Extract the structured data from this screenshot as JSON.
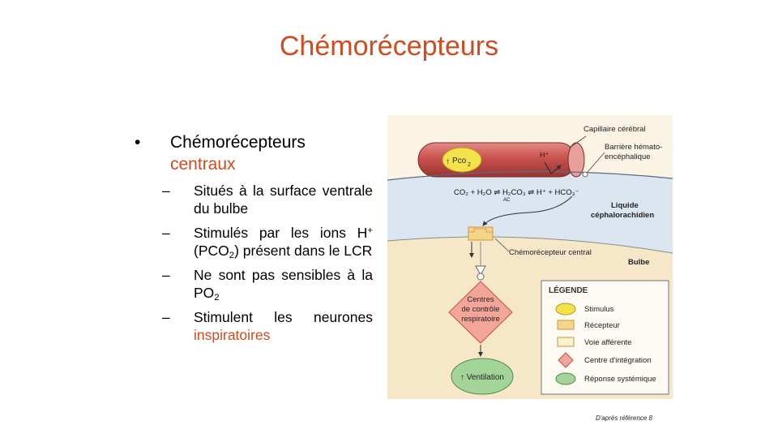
{
  "slide": {
    "title": "Chémorécepteurs",
    "credit": "D'après référence 8"
  },
  "bullets": {
    "main_line1": "Chémorécepteurs",
    "main_line2": "centraux",
    "sub1": "Situés à la surface ventrale du bulbe",
    "sub2_a": "Stimulés par les ions H",
    "sub2_sup": "+",
    "sub2_b": " (PCO",
    "sub2_sub": "2",
    "sub2_c": ") présent dans le LCR",
    "sub3_a": "Ne sont pas sensibles à la PO",
    "sub3_sub": "2",
    "sub4_a": "Stimulent les neurones ",
    "sub4_b": "inspiratoires"
  },
  "figure": {
    "label_capillary": "Capillaire cérébral",
    "label_barrier_1": "Barrière hémato-",
    "label_barrier_2": "encéphalique",
    "pco2": "Pco",
    "pco2_sub": "2",
    "h_plus": "H⁺",
    "equation": "CO₂ + H₂O ⇌ H₂CO₃ ⇌ H⁺ + HCO₃⁻",
    "ac": "AC",
    "label_lcr_1": "Liquide",
    "label_lcr_2": "céphalorachidien",
    "label_receptor": "Chémorécepteur central",
    "label_bulbe": "Bulbe",
    "centre_1": "Centres",
    "centre_2": "de contrôle",
    "centre_3": "respiratoire",
    "ventilation": "↑ Ventilation",
    "legend_title": "LÉGENDE",
    "legend_items": [
      "Stimulus",
      "Récepteur",
      "Voie afférente",
      "Centre d'intégration",
      "Réponse systémique"
    ]
  },
  "colors": {
    "accent": "#d24a1e",
    "vessel": "#c8524e",
    "stimulus": "#f3e24a",
    "receptor": "#f6d48a",
    "centre": "#f4a59a",
    "response": "#a5d49a",
    "csf": "#dce6f1",
    "bulbe": "#f6e7c8"
  }
}
